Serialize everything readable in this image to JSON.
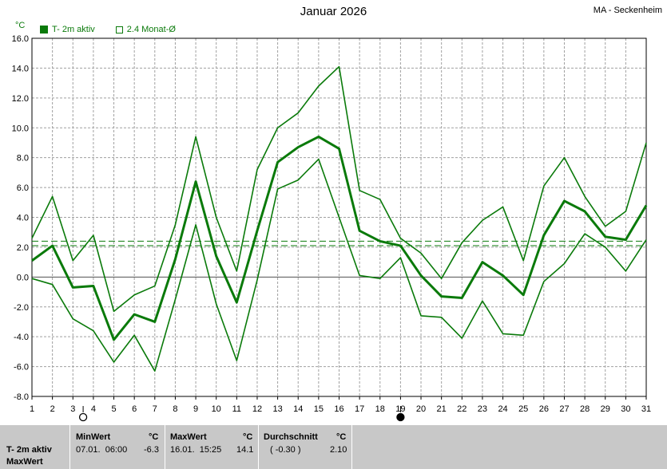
{
  "header": {
    "title": "Januar 2026",
    "station": "MA - Seckenheim",
    "unit": "°C"
  },
  "legend": {
    "series_label": "T- 2m aktiv",
    "average_label": "2.4 Monat-Ø"
  },
  "colors": {
    "series": "#0a7a0a",
    "grid": "#a0a0a0",
    "stats_bg": "#c8c8c8"
  },
  "chart_data": {
    "type": "line",
    "x": [
      1,
      2,
      3,
      4,
      5,
      6,
      7,
      8,
      9,
      10,
      11,
      12,
      13,
      14,
      15,
      16,
      17,
      18,
      19,
      20,
      21,
      22,
      23,
      24,
      25,
      26,
      27,
      28,
      29,
      30,
      31
    ],
    "xlim": [
      1,
      31
    ],
    "ylim": [
      -8.0,
      16.0
    ],
    "y_ticks": [
      "16.0",
      "14.0",
      "12.0",
      "10.0",
      "8.0",
      "6.0",
      "4.0",
      "2.0",
      "0.0",
      "-2.0",
      "-4.0",
      "-6.0",
      "-8.0"
    ],
    "grid": true,
    "series": [
      {
        "role": "max",
        "values": [
          2.6,
          5.4,
          1.1,
          2.8,
          -2.3,
          -1.2,
          -0.6,
          3.5,
          9.4,
          4.0,
          0.4,
          7.2,
          10.0,
          11.0,
          12.8,
          14.1,
          5.8,
          5.2,
          2.6,
          1.6,
          -0.1,
          2.3,
          3.8,
          4.7,
          1.1,
          6.1,
          8.0,
          5.4,
          3.4,
          4.4,
          9.0
        ]
      },
      {
        "role": "mean",
        "values": [
          1.1,
          2.1,
          -0.7,
          -0.6,
          -4.2,
          -2.5,
          -3.0,
          1.2,
          6.4,
          1.4,
          -1.7,
          3.1,
          7.7,
          8.7,
          9.4,
          8.6,
          3.1,
          2.4,
          2.1,
          0.1,
          -1.3,
          -1.4,
          1.0,
          0.1,
          -1.2,
          2.8,
          5.1,
          4.4,
          2.7,
          2.5,
          4.8
        ]
      },
      {
        "role": "min",
        "values": [
          -0.1,
          -0.5,
          -2.8,
          -3.6,
          -5.7,
          -3.9,
          -6.3,
          -1.5,
          3.5,
          -1.8,
          -5.6,
          -0.2,
          5.9,
          6.5,
          7.9,
          4.0,
          0.1,
          -0.1,
          1.3,
          -2.6,
          -2.7,
          -4.1,
          -1.6,
          -3.8,
          -3.9,
          -0.3,
          0.9,
          2.9,
          2.0,
          0.4,
          2.5
        ]
      }
    ],
    "reference_lines": [
      {
        "label": "2.4 Monat-Ø",
        "value": 2.4,
        "style": "dashed"
      },
      {
        "value": 2.1,
        "style": "dashed"
      }
    ],
    "markers": [
      {
        "x": 3.5,
        "symbol": "open-circle"
      },
      {
        "x": 19,
        "symbol": "filled-circle"
      }
    ]
  },
  "stats": {
    "row_label_1": "T- 2m aktiv",
    "row_label_2": "MaxWert",
    "min_header": "MinWert",
    "min_unit": "°C",
    "min_datetime": "07.01.  06:00",
    "min_value": "-6.3",
    "max_header": "MaxWert",
    "max_unit": "°C",
    "max_datetime": "16.01.  15:25",
    "max_value": "14.1",
    "avg_header": "Durchschnitt",
    "avg_unit": "°C",
    "avg_deviation": "( -0.30 )",
    "avg_value": "2.10"
  }
}
